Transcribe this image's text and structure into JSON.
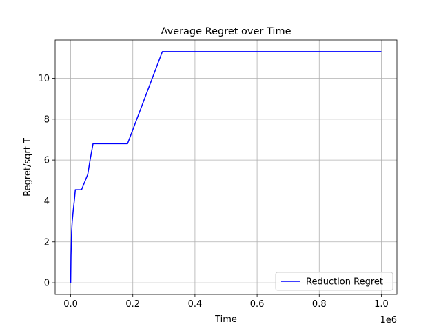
{
  "chart_data": {
    "type": "line",
    "title": "Average Regret over Time",
    "xlabel": "Time",
    "ylabel": "Regret/sqrt T",
    "x_offset_label": "1e6",
    "xlim": [
      -0.05,
      1.05
    ],
    "ylim": [
      -0.57,
      11.87
    ],
    "x_scale": 1000000,
    "xticks": [
      0.0,
      0.2,
      0.4,
      0.6,
      0.8,
      1.0
    ],
    "xtick_labels": [
      "0.0",
      "0.2",
      "0.4",
      "0.6",
      "0.8",
      "1.0"
    ],
    "yticks": [
      0,
      2,
      4,
      6,
      8,
      10
    ],
    "ytick_labels": [
      "0",
      "2",
      "4",
      "6",
      "8",
      "10"
    ],
    "grid": true,
    "legend_position": "lower right",
    "series": [
      {
        "name": "Reduction Regret",
        "color": "#0000ff",
        "x": [
          0,
          1000,
          2000,
          3000,
          5000,
          8000,
          12000,
          15000,
          20000,
          35000,
          55000,
          63000,
          72000,
          183000,
          295000,
          1000000
        ],
        "y": [
          0.0,
          1.3,
          1.9,
          2.5,
          3.0,
          3.5,
          4.05,
          4.55,
          4.55,
          4.55,
          5.3,
          6.05,
          6.8,
          6.8,
          11.3,
          11.3
        ]
      }
    ]
  }
}
